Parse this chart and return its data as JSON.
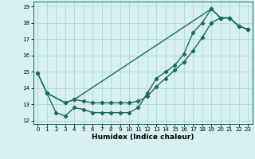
{
  "line1_x": [
    0,
    1,
    2,
    3,
    4,
    5,
    6,
    7,
    8,
    9,
    10,
    11,
    12,
    13,
    14,
    15,
    16,
    17,
    18,
    19,
    20,
    21,
    22,
    23
  ],
  "line1_y": [
    14.9,
    13.7,
    12.5,
    12.3,
    12.8,
    12.7,
    12.5,
    12.5,
    12.5,
    12.5,
    12.5,
    12.8,
    13.7,
    14.6,
    15.0,
    15.4,
    16.1,
    17.4,
    18.0,
    18.85,
    18.3,
    18.3,
    17.8,
    17.6
  ],
  "line2_x": [
    1,
    3,
    4,
    5,
    6,
    7,
    8,
    9,
    10,
    11,
    12,
    13,
    14,
    15,
    16,
    17,
    18,
    19,
    20,
    21,
    22,
    23
  ],
  "line2_y": [
    13.7,
    13.1,
    13.3,
    13.2,
    13.1,
    13.1,
    13.1,
    13.1,
    13.1,
    13.2,
    13.5,
    14.1,
    14.6,
    15.1,
    15.6,
    16.3,
    17.1,
    18.0,
    18.3,
    18.3,
    17.8,
    17.6
  ],
  "line3_x": [
    0,
    1,
    3,
    4,
    19,
    20,
    21,
    22,
    23
  ],
  "line3_y": [
    14.9,
    13.7,
    13.1,
    13.3,
    18.85,
    18.3,
    18.3,
    17.8,
    17.6
  ],
  "xlim": [
    -0.5,
    23.5
  ],
  "ylim": [
    11.8,
    19.3
  ],
  "yticks": [
    12,
    13,
    14,
    15,
    16,
    17,
    18,
    19
  ],
  "xticks": [
    0,
    1,
    2,
    3,
    4,
    5,
    6,
    7,
    8,
    9,
    10,
    11,
    12,
    13,
    14,
    15,
    16,
    17,
    18,
    19,
    20,
    21,
    22,
    23
  ],
  "xlabel": "Humidex (Indice chaleur)",
  "line_color": "#1a6b5a",
  "bg_color": "#d8f0f0",
  "grid_color": "#b0d8d8",
  "marker": "D",
  "markersize": 2.2,
  "linewidth": 1.0
}
